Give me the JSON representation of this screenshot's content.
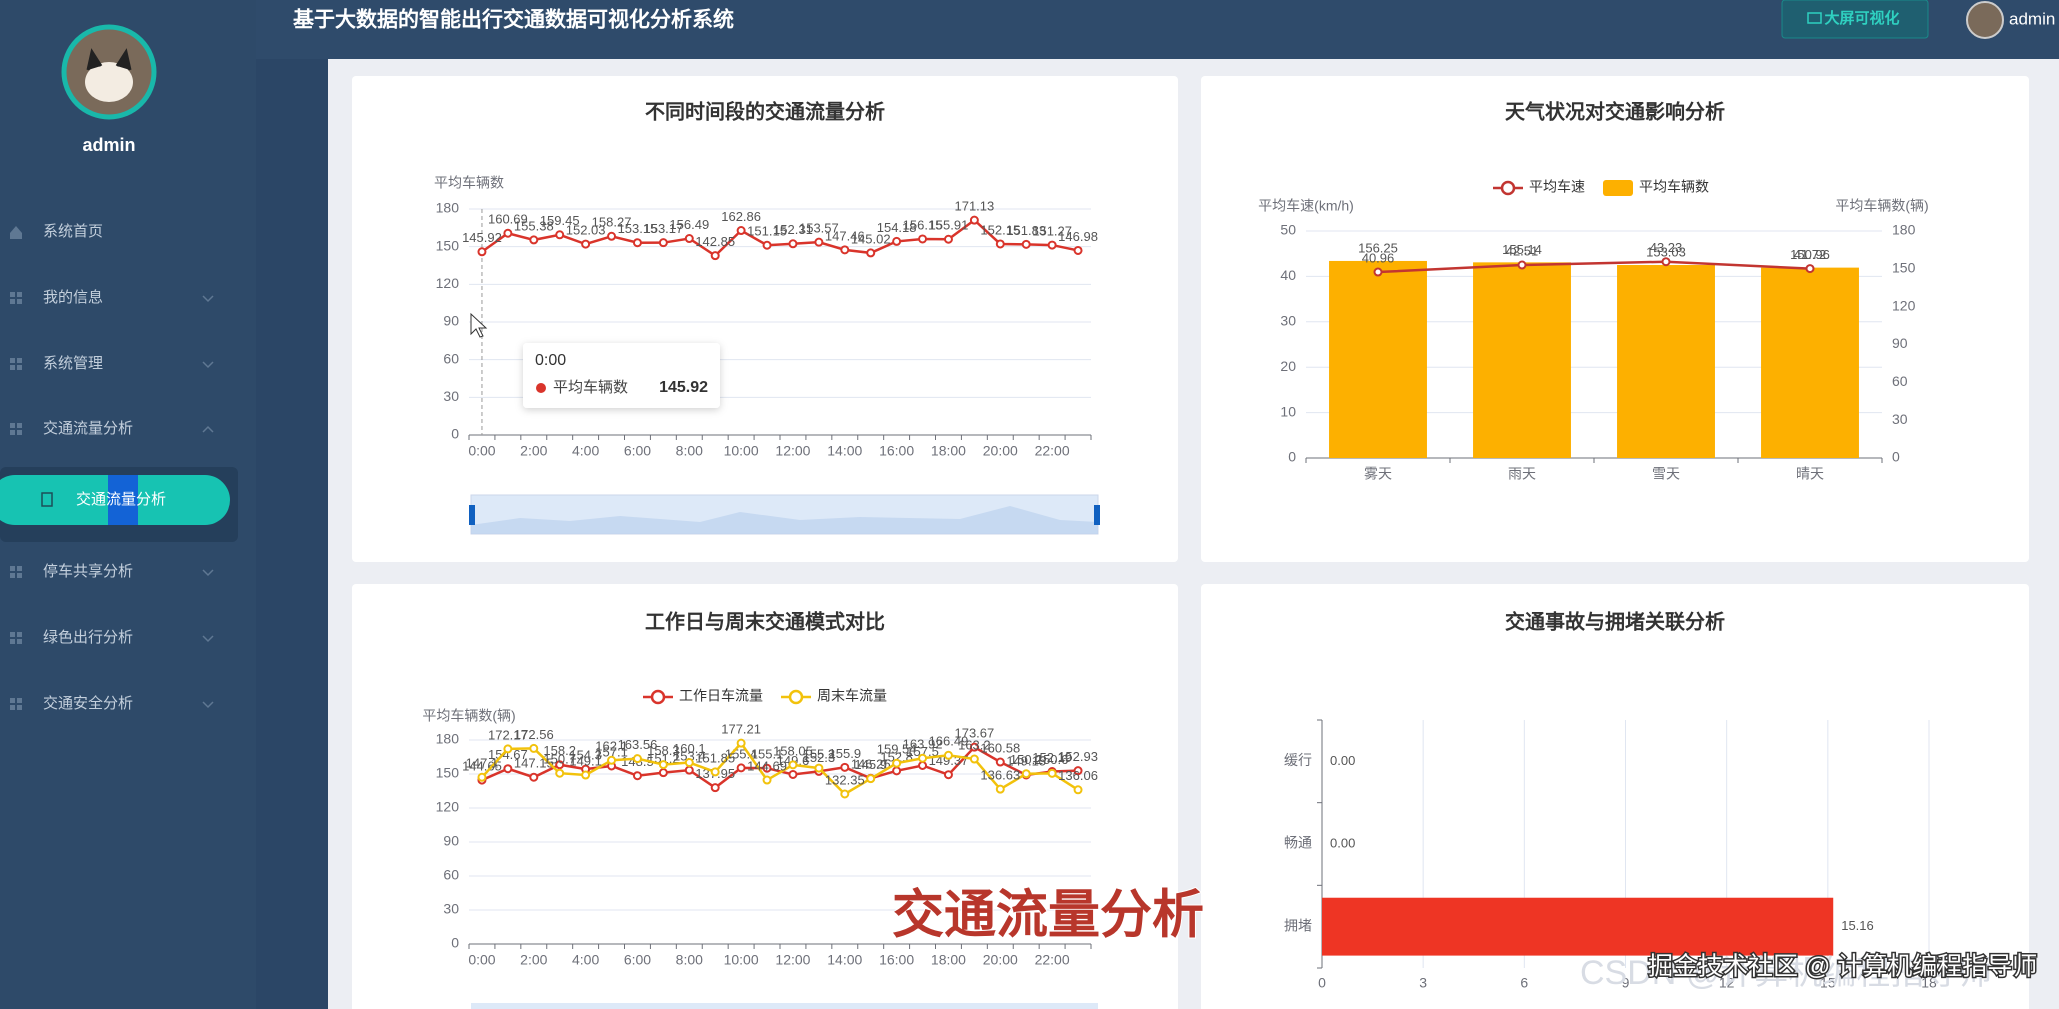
{
  "header": {
    "title": "基于大数据的智能出行交通数据可视化分析系统",
    "button": "大屏可视化",
    "user": "admin"
  },
  "sidebar": {
    "user": "admin",
    "menu": [
      "系统首页",
      "我的信息",
      "系统管理",
      "交通流量分析",
      "停车共享分析",
      "绿色出行分析",
      "交通安全分析"
    ],
    "active_submenu": "交通流量分析"
  },
  "chart_data": [
    {
      "type": "line",
      "title": "不同时间段的交通流量分析",
      "y_label": "平均车辆数",
      "categories": [
        "0:00",
        null,
        "2:00",
        null,
        "4:00",
        null,
        "6:00",
        null,
        "8:00",
        null,
        "10:00",
        null,
        "12:00",
        null,
        "14:00",
        null,
        "16:00",
        null,
        "18:00",
        null,
        "20:00",
        null,
        "22:00",
        null
      ],
      "series": [
        {
          "name": "平均车辆数",
          "color": "#d9342b",
          "values": [
            145.92,
            160.69,
            155.38,
            159.45,
            152.03,
            158.27,
            153.15,
            153.17,
            156.49,
            142.85,
            162.86,
            151.15,
            152.31,
            153.57,
            147.46,
            145.02,
            154.18,
            156.15,
            155.91,
            171.13,
            152.15,
            151.83,
            151.27,
            146.98
          ]
        }
      ],
      "ylim": [
        0,
        180
      ],
      "yticks": [
        0,
        30,
        60,
        90,
        120,
        150,
        180
      ],
      "grid": true
    },
    {
      "type": "bar",
      "title": "天气状况对交通影响分析",
      "y_label": "平均车速(km/h)",
      "y2_label": "平均车辆数(辆)",
      "categories": [
        "雾天",
        "雨天",
        "雪天",
        "晴天"
      ],
      "series": [
        {
          "name": "平均车速",
          "type": "line",
          "color": "#c23531",
          "values": [
            40.96,
            42.51,
            43.23,
            41.72
          ]
        },
        {
          "name": "平均车辆数",
          "type": "bar",
          "axis": "y2",
          "color": "#fdb000",
          "values": [
            156.25,
            155.14,
            153.03,
            150.96
          ]
        }
      ],
      "ylim": [
        0,
        50
      ],
      "yticks": [
        0,
        10,
        20,
        30,
        40,
        50
      ],
      "y2lim": [
        0,
        180
      ],
      "y2ticks": [
        0,
        30,
        60,
        90,
        120,
        150,
        180
      ],
      "grid": true,
      "legend": "top"
    },
    {
      "type": "line",
      "title": "工作日与周末交通模式对比",
      "y_label": "平均车辆数(辆)",
      "categories": [
        "0:00",
        null,
        "2:00",
        null,
        "4:00",
        null,
        "6:00",
        null,
        "8:00",
        null,
        "10:00",
        null,
        "12:00",
        null,
        "14:00",
        null,
        "16:00",
        null,
        "18:00",
        null,
        "20:00",
        null,
        "22:00",
        null
      ],
      "series": [
        {
          "name": "工作日车流量",
          "color": "#d9342b",
          "values": [
            144.65,
            154.67,
            147.15,
            158.2,
            154.3,
            157.1,
            148.5,
            151.2,
            153.4,
            137.95,
            155.4,
            155.1,
            149.6,
            152.3,
            155.9,
            146.25,
            152.8,
            157.5,
            149.37,
            173.67,
            160.58,
            149.15,
            152.19,
            152.93
          ]
        },
        {
          "name": "周末车流量",
          "color": "#f2c20c",
          "values": [
            147.1,
            172.17,
            172.56,
            150.7,
            149.1,
            162.1,
            163.56,
            158.3,
            160.1,
            151.85,
            177.21,
            144.69,
            158.05,
            155.2,
            132.35,
            145.9,
            159.54,
            163.92,
            166.49,
            163.2,
            136.63,
            150.2,
            150.6,
            136.06
          ]
        }
      ],
      "ylim": [
        0,
        180
      ],
      "yticks": [
        0,
        30,
        60,
        90,
        120,
        150,
        180
      ],
      "grid": true,
      "legend": "top"
    },
    {
      "type": "barh",
      "title": "交通事故与拥堵关联分析",
      "categories": [
        "缓行",
        "畅通",
        "拥堵"
      ],
      "values": [
        0,
        0,
        15.16
      ],
      "value_labels": [
        "0.00",
        "0.00",
        "15.16"
      ],
      "color": "#ee3524",
      "xlim": [
        0,
        18
      ],
      "xticks": [
        0,
        3,
        6,
        9,
        12,
        15,
        18
      ],
      "grid": true
    }
  ],
  "overlay": {
    "caption": "交通流量分析",
    "watermark": "CSDN @计算机编程指导师",
    "watermark2": "掘金技术社区 @ 计算机编程指导师"
  }
}
